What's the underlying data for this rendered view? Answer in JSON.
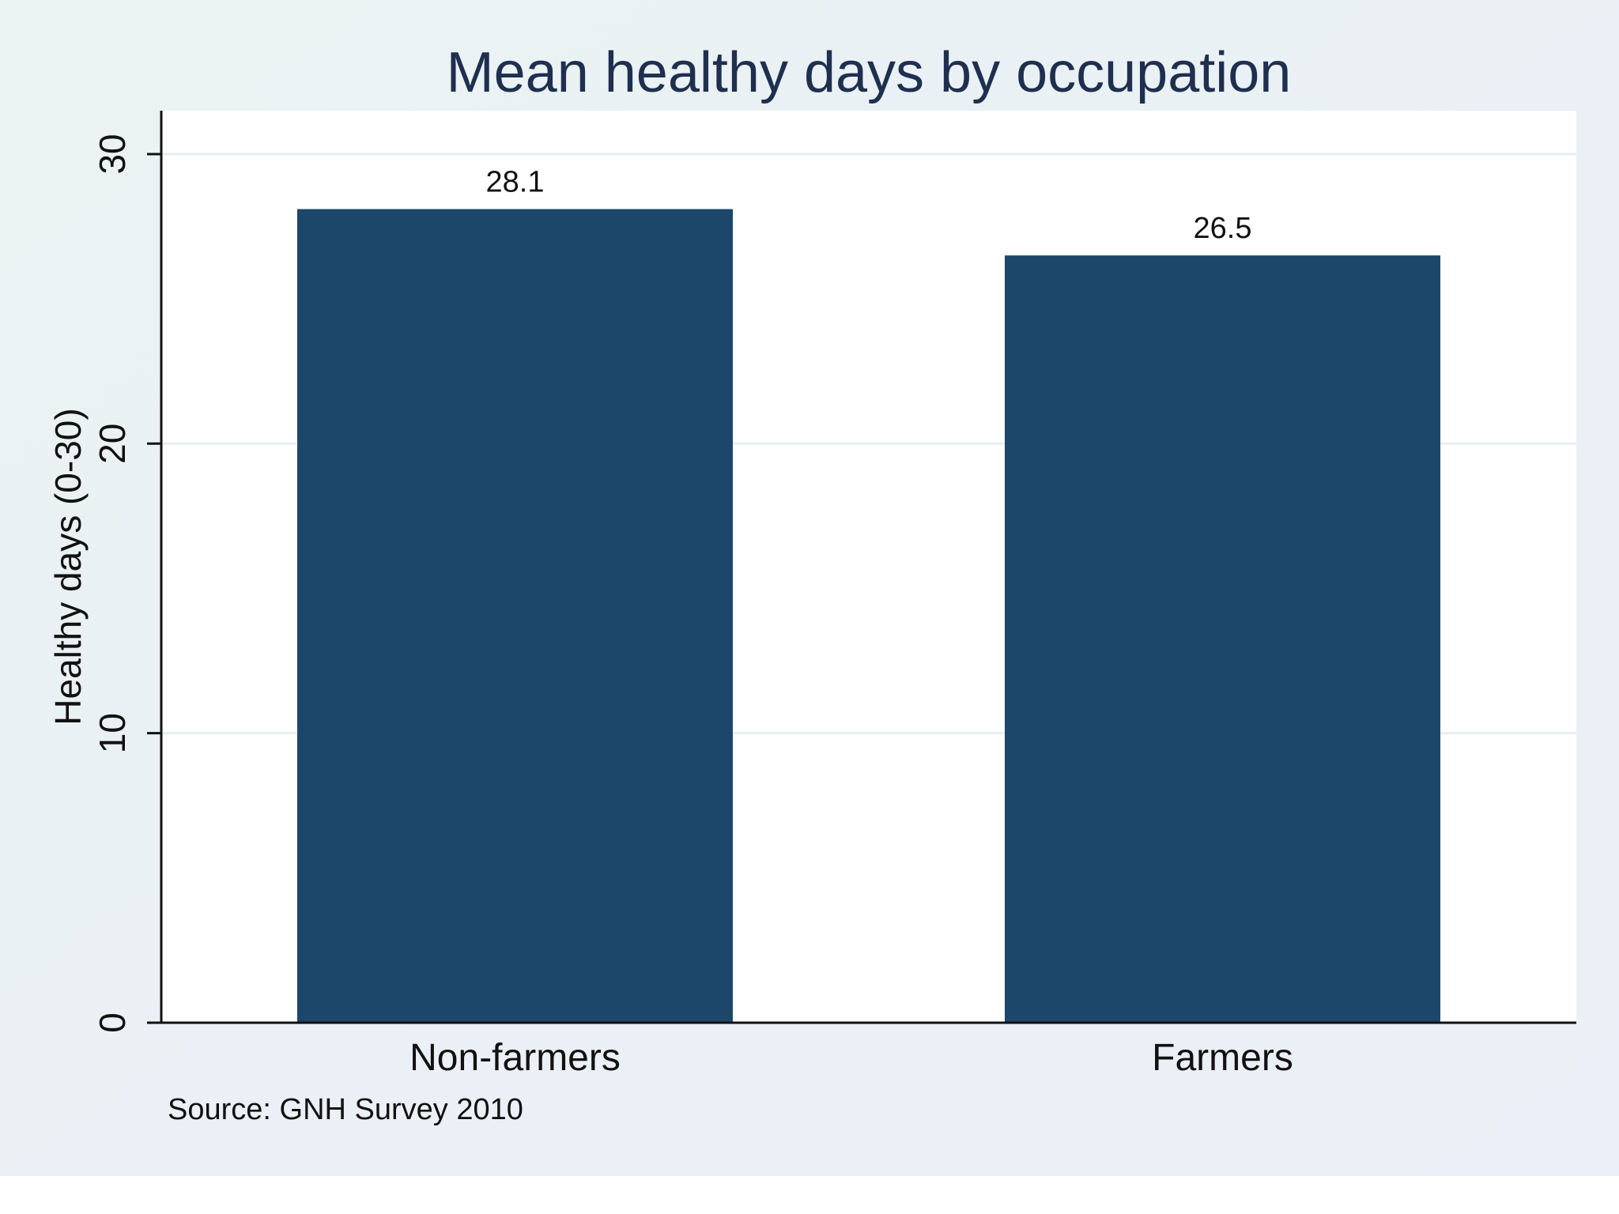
{
  "chart_data": {
    "type": "bar",
    "title": "Mean healthy days by occupation",
    "categories": [
      "Non-farmers",
      "Farmers"
    ],
    "values": [
      28.1,
      26.5
    ],
    "value_labels": [
      "28.1",
      "26.5"
    ],
    "xlabel": "",
    "ylabel": "Healthy days (0-30)",
    "ylim": [
      0,
      31.5
    ],
    "yticks": [
      0,
      10,
      20,
      30
    ],
    "ytick_labels": [
      "0",
      "10",
      "20",
      "30"
    ],
    "grid": true,
    "note": "Source: GNH Survey 2010",
    "colors": {
      "background": "#eaf2f3",
      "plot_background": "#ffffff",
      "bar": "#1c476b",
      "grid": "#e6eef0",
      "axis": "#111111",
      "title": "#1f2f4f"
    }
  }
}
